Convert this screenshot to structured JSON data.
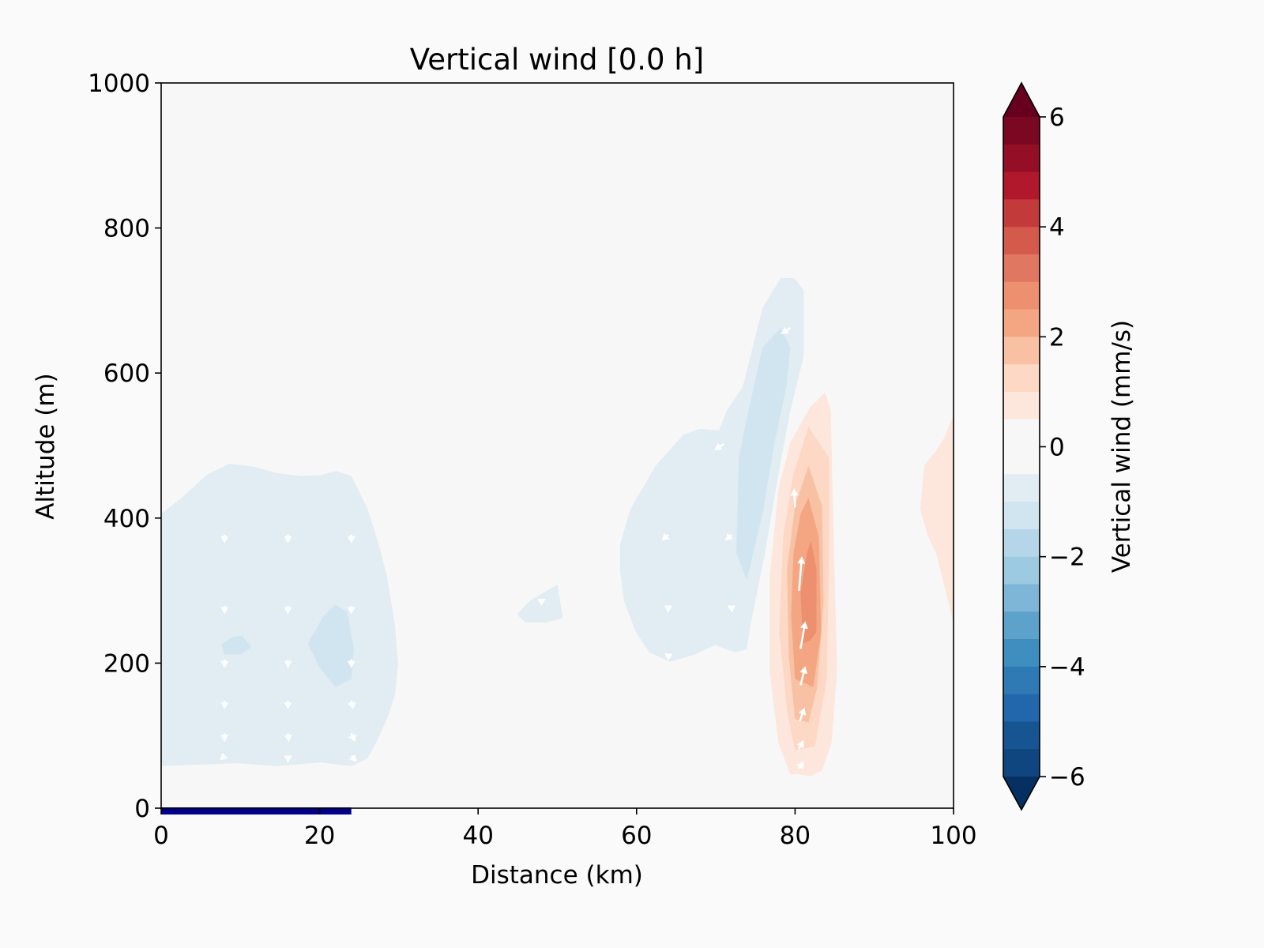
{
  "chart_data": {
    "type": "contourf",
    "title": "Vertical wind [0.0 h]",
    "xlabel": "Distance (km)",
    "ylabel": "Altitude (m)",
    "xlim": [
      0,
      100
    ],
    "ylim": [
      0,
      1000
    ],
    "xticks": [
      0,
      20,
      40,
      60,
      80,
      100
    ],
    "yticks": [
      0,
      200,
      400,
      600,
      800,
      1000
    ],
    "grid": false,
    "colorbar": {
      "label": "Vertical wind (mm/s)",
      "range": [
        -6,
        6
      ],
      "step": 0.5,
      "extend": "both",
      "ticks": [
        -6,
        -4,
        -2,
        0,
        2,
        4,
        6
      ],
      "tick_labels": [
        "−6",
        "−4",
        "−2",
        "0",
        "2",
        "4",
        "6"
      ],
      "colors_top_to_bottom": [
        "#7a0822",
        "#940f26",
        "#b2182b",
        "#c33a3b",
        "#d45a4b",
        "#e07760",
        "#ec9070",
        "#f4a683",
        "#f8c1a3",
        "#fcd8c5",
        "#fde6dc",
        "#f7f7f7",
        "#f7f7f7",
        "#e1ecf3",
        "#d1e5f0",
        "#b5d6e8",
        "#9ccae0",
        "#7db6d6",
        "#5ca2cb",
        "#3f8ec0",
        "#2f79b5",
        "#2266ac",
        "#175592",
        "#0f467f"
      ],
      "over_color": "#67001f",
      "under_color": "#053061"
    },
    "regions": [
      {
        "level": -0.5,
        "color": "#e1ecf3",
        "points": [
          [
            0,
            406
          ],
          [
            2.6,
            428
          ],
          [
            5.8,
            460
          ],
          [
            8.6,
            475
          ],
          [
            11.6,
            471
          ],
          [
            14.6,
            462
          ],
          [
            17.6,
            458
          ],
          [
            20.1,
            459
          ],
          [
            22.1,
            465
          ],
          [
            24.0,
            458
          ],
          [
            26.0,
            414
          ],
          [
            27.5,
            362
          ],
          [
            28.5,
            319
          ],
          [
            29.5,
            253
          ],
          [
            29.9,
            199
          ],
          [
            29.5,
            156
          ],
          [
            28.5,
            123
          ],
          [
            27.1,
            90
          ],
          [
            26.0,
            68
          ],
          [
            24.0,
            58
          ],
          [
            20.1,
            63
          ],
          [
            14.6,
            58
          ],
          [
            9.6,
            62
          ],
          [
            4.6,
            60
          ],
          [
            0,
            58
          ]
        ]
      },
      {
        "level": -1.0,
        "color": "#d1e5f0",
        "points": [
          [
            7.6,
            226
          ],
          [
            9.0,
            236
          ],
          [
            10.2,
            238
          ],
          [
            11.4,
            222
          ],
          [
            10.0,
            212
          ],
          [
            8.0,
            212
          ]
        ]
      },
      {
        "level": -1.0,
        "color": "#d1e5f0",
        "points": [
          [
            18.5,
            227
          ],
          [
            20.5,
            265
          ],
          [
            22.0,
            281
          ],
          [
            23.5,
            270
          ],
          [
            24.3,
            221
          ],
          [
            24.0,
            178
          ],
          [
            22.0,
            167
          ],
          [
            20.0,
            194
          ]
        ]
      },
      {
        "level": -0.5,
        "color": "#e1ecf3",
        "points": [
          [
            44.9,
            267
          ],
          [
            46.5,
            286
          ],
          [
            50.0,
            308
          ],
          [
            50.7,
            262
          ],
          [
            48.5,
            256
          ],
          [
            46.0,
            256
          ]
        ]
      },
      {
        "level": -0.5,
        "color": "#e1ecf3",
        "points": [
          [
            57.9,
            363
          ],
          [
            59.2,
            412
          ],
          [
            62.4,
            472
          ],
          [
            65.9,
            515
          ],
          [
            67.9,
            523
          ],
          [
            70.4,
            521
          ],
          [
            71.4,
            548
          ],
          [
            73.4,
            581
          ],
          [
            75.9,
            690
          ],
          [
            78.2,
            731
          ],
          [
            79.9,
            731
          ],
          [
            81.1,
            714
          ],
          [
            81.1,
            624
          ],
          [
            79.4,
            548
          ],
          [
            77.9,
            461
          ],
          [
            76.2,
            352
          ],
          [
            74.4,
            254
          ],
          [
            73.9,
            219
          ],
          [
            72.4,
            215
          ],
          [
            69.9,
            225
          ],
          [
            67.4,
            212
          ],
          [
            64.2,
            202
          ],
          [
            61.6,
            215
          ],
          [
            59.9,
            243
          ],
          [
            58.4,
            286
          ],
          [
            57.9,
            330
          ]
        ]
      },
      {
        "level": -1.0,
        "color": "#d1e5f0",
        "points": [
          [
            72.9,
            483
          ],
          [
            73.9,
            537
          ],
          [
            75.9,
            635
          ],
          [
            78.2,
            662
          ],
          [
            79.4,
            635
          ],
          [
            78.9,
            581
          ],
          [
            77.4,
            504
          ],
          [
            75.9,
            406
          ],
          [
            73.9,
            314
          ],
          [
            72.6,
            352
          ]
        ]
      },
      {
        "level": 0.5,
        "color": "#fde6dc",
        "points": [
          [
            79.4,
            47
          ],
          [
            77.9,
            90
          ],
          [
            76.8,
            188
          ],
          [
            76.8,
            319
          ],
          [
            77.9,
            439
          ],
          [
            79.4,
            504
          ],
          [
            81.9,
            553
          ],
          [
            83.8,
            573
          ],
          [
            84.5,
            548
          ],
          [
            84.8,
            406
          ],
          [
            85.3,
            188
          ],
          [
            84.6,
            90
          ],
          [
            83.4,
            52
          ],
          [
            81.9,
            44
          ],
          [
            80.4,
            47
          ]
        ]
      },
      {
        "level": 1.0,
        "color": "#fcd8c5",
        "points": [
          [
            80,
            80
          ],
          [
            79,
            134
          ],
          [
            78,
            243
          ],
          [
            78.5,
            374
          ],
          [
            79.8,
            461
          ],
          [
            81.7,
            526
          ],
          [
            83,
            504
          ],
          [
            84.3,
            483
          ],
          [
            84.3,
            352
          ],
          [
            84,
            178
          ],
          [
            82.5,
            85
          ]
        ]
      },
      {
        "level": 1.5,
        "color": "#f8c1a3",
        "points": [
          [
            80,
            123
          ],
          [
            79.2,
            210
          ],
          [
            79,
            330
          ],
          [
            80,
            417
          ],
          [
            81.7,
            472
          ],
          [
            83.4,
            417
          ],
          [
            83.6,
            286
          ],
          [
            82.8,
            167
          ],
          [
            81.7,
            118
          ]
        ]
      },
      {
        "level": 2.0,
        "color": "#f4a683",
        "points": [
          [
            80,
            178
          ],
          [
            79.5,
            265
          ],
          [
            79.8,
            352
          ],
          [
            80.7,
            406
          ],
          [
            81.7,
            428
          ],
          [
            83,
            374
          ],
          [
            83.3,
            243
          ],
          [
            82.3,
            167
          ]
        ]
      },
      {
        "level": 2.5,
        "color": "#ec9070",
        "points": [
          [
            81,
            227
          ],
          [
            80.7,
            297
          ],
          [
            81.5,
            352
          ],
          [
            82,
            368
          ],
          [
            82.7,
            330
          ],
          [
            82.7,
            243
          ],
          [
            82,
            232
          ]
        ]
      },
      {
        "level": 0.5,
        "color": "#fde6dc",
        "points": [
          [
            100,
            542
          ],
          [
            98.8,
            510
          ],
          [
            97.8,
            493
          ],
          [
            96.3,
            472
          ],
          [
            95.8,
            412
          ],
          [
            96.8,
            374
          ],
          [
            97.8,
            352
          ],
          [
            98.8,
            308
          ],
          [
            100,
            254
          ]
        ]
      }
    ],
    "quiver": {
      "color": "#ffffff",
      "arrows": [
        [
          8,
          377,
          0,
          -1
        ],
        [
          16,
          377,
          0,
          -1
        ],
        [
          24,
          377,
          0,
          -1
        ],
        [
          8,
          279,
          0,
          -1
        ],
        [
          16,
          279,
          0,
          -1
        ],
        [
          24,
          279,
          0,
          -1
        ],
        [
          8,
          205,
          0,
          -1
        ],
        [
          16,
          205,
          0,
          -1
        ],
        [
          24,
          205,
          0,
          -1
        ],
        [
          8,
          148,
          0,
          -1
        ],
        [
          16,
          148,
          0,
          -1
        ],
        [
          24,
          148,
          0.2,
          -1
        ],
        [
          8,
          103,
          0,
          -1
        ],
        [
          16,
          103,
          0.1,
          -1
        ],
        [
          24,
          103,
          0.4,
          -1
        ],
        [
          8,
          72,
          -0.5,
          -0.5
        ],
        [
          16,
          72,
          0,
          -0.8
        ],
        [
          24,
          72,
          0.6,
          -0.7
        ],
        [
          47.8,
          284,
          0.6,
          0.4
        ],
        [
          64,
          377,
          -0.7,
          -0.7
        ],
        [
          72,
          377,
          -0.7,
          -0.7
        ],
        [
          64,
          279,
          0,
          -0.8
        ],
        [
          72,
          279,
          0,
          -0.8
        ],
        [
          64,
          210,
          -0.4,
          0.3
        ],
        [
          71,
          502,
          -1,
          -0.7
        ],
        [
          79.4,
          662,
          -1,
          -0.7
        ],
        [
          80,
          415,
          -0.1,
          2.2
        ],
        [
          80.5,
          300,
          0.3,
          4.0
        ],
        [
          80.7,
          220,
          0.5,
          3.2
        ],
        [
          80.7,
          170,
          0.5,
          2.2
        ],
        [
          80.6,
          120,
          0.5,
          1.6
        ],
        [
          80.5,
          82,
          0.5,
          1.0
        ],
        [
          80.5,
          55,
          0.5,
          0.8
        ]
      ]
    },
    "surface_bar": {
      "x": [
        0,
        24
      ],
      "color": "#00008b"
    }
  }
}
